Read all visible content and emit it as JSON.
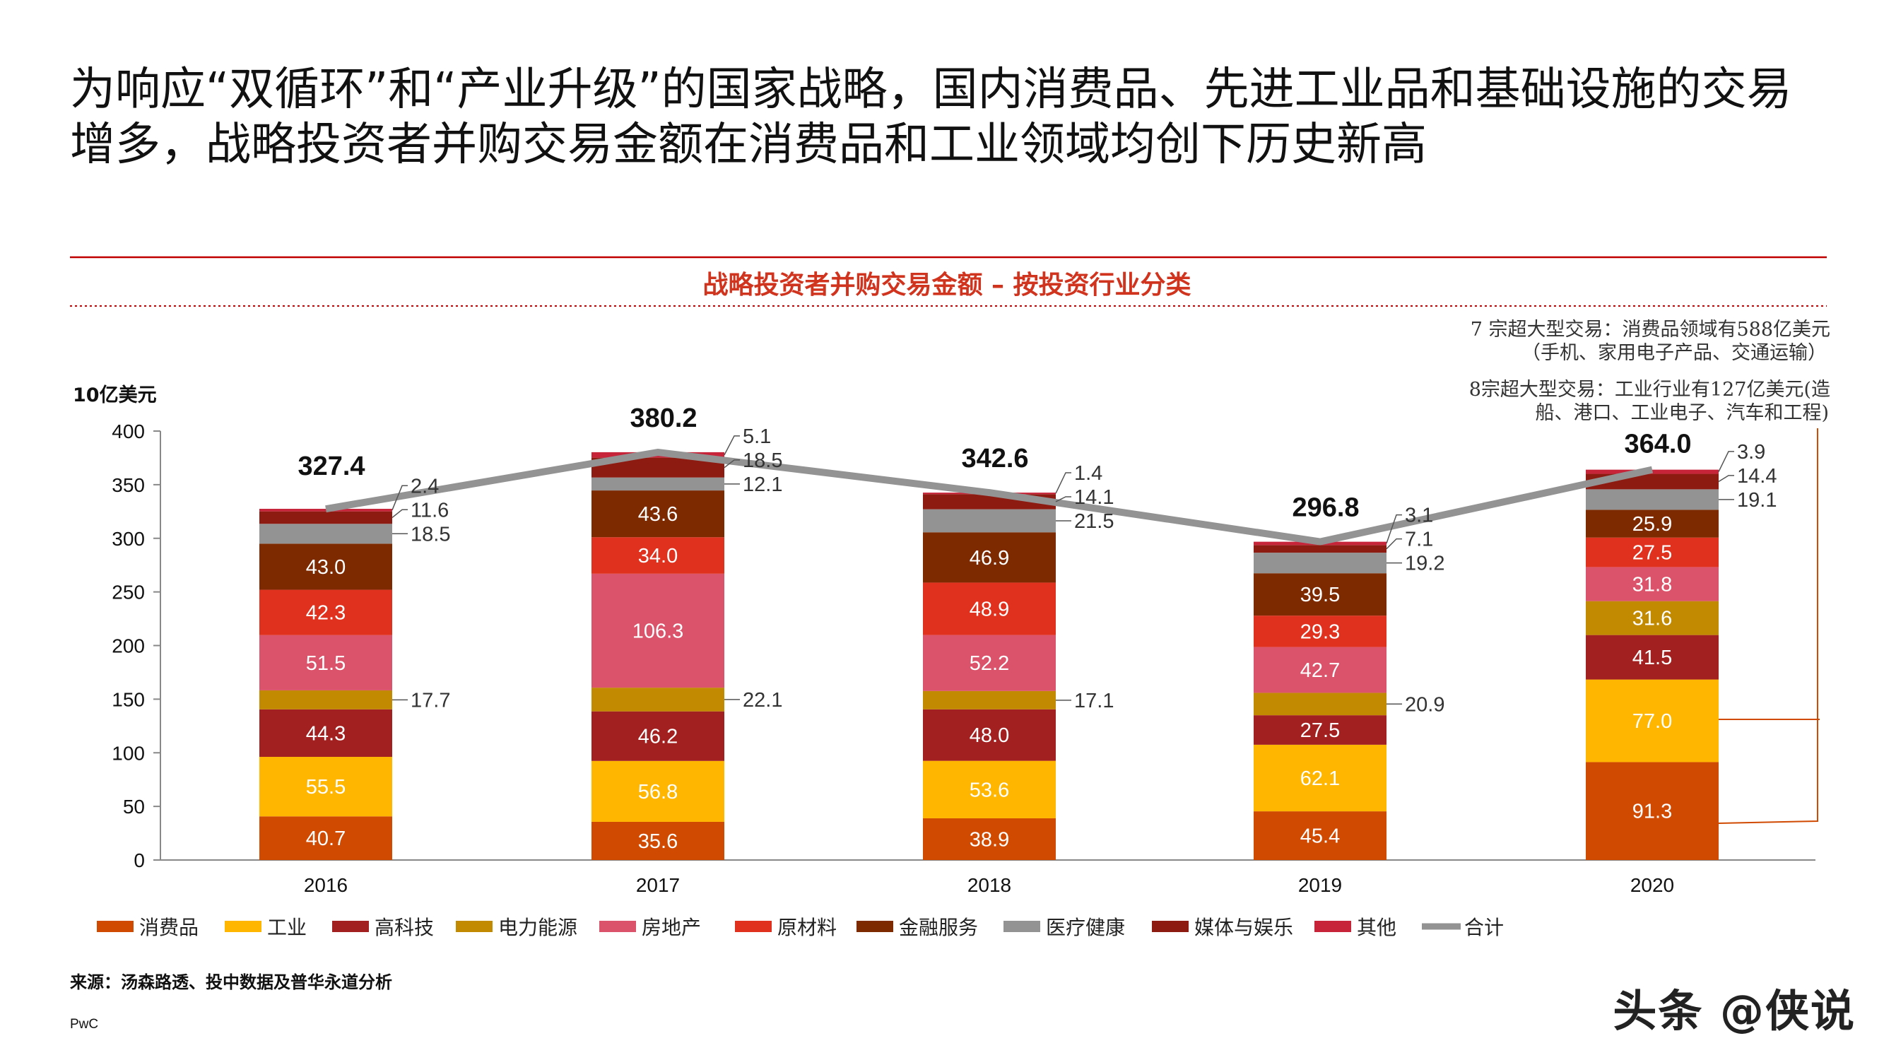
{
  "headline": "为响应“双循环”和“产业升级”的国家战略，国内消费品、先进工业品和基础设施的交易增多，战略投资者并购交易金额在消费品和工业领域均创下历史新高",
  "annotations": {
    "consumer_line1": "7 宗超大型交易：消费品领域有588亿美元",
    "consumer_line2": "（手机、家用电子产品、交通运输）",
    "industrial_line1": "8宗超大型交易：工业行业有127亿美元(造",
    "industrial_line2": "船、港口、工业电子、汽车和工程)"
  },
  "source": "来源：汤森路透、投中数据及普华永道分析",
  "footer": "PwC",
  "watermark": "头条 @侠说",
  "chart_data": {
    "type": "bar",
    "stacked": true,
    "title": "战略投资者并购交易金额 – 按投资行业分类",
    "ylabel": "10亿美元",
    "ylim": [
      0,
      400
    ],
    "yticks": [
      0,
      50,
      100,
      150,
      200,
      250,
      300,
      350,
      400
    ],
    "categories": [
      "2016",
      "2017",
      "2018",
      "2019",
      "2020"
    ],
    "legend_position": "bottom",
    "series": [
      {
        "name": "消费品",
        "color": "#D04A02",
        "values": [
          40.7,
          35.6,
          38.9,
          45.4,
          91.3
        ]
      },
      {
        "name": "工业",
        "color": "#FFB600",
        "values": [
          55.5,
          56.8,
          53.6,
          62.1,
          77.0
        ]
      },
      {
        "name": "高科技",
        "color": "#A32020",
        "values": [
          44.3,
          46.2,
          48.0,
          27.5,
          41.5
        ]
      },
      {
        "name": "电力能源",
        "color": "#C28A00",
        "values": [
          17.7,
          22.1,
          17.1,
          20.9,
          31.6
        ]
      },
      {
        "name": "房地产",
        "color": "#DB536A",
        "values": [
          51.5,
          106.3,
          52.2,
          42.7,
          31.8
        ]
      },
      {
        "name": "原材料",
        "color": "#E0301E",
        "values": [
          42.3,
          34.0,
          48.9,
          29.3,
          27.5
        ]
      },
      {
        "name": "金融服务",
        "color": "#7D2A00",
        "values": [
          43.0,
          43.6,
          46.9,
          39.5,
          25.9
        ]
      },
      {
        "name": "医疗健康",
        "color": "#939393",
        "values": [
          18.5,
          12.1,
          21.5,
          19.2,
          19.1
        ]
      },
      {
        "name": "媒体与娱乐",
        "color": "#8E1B12",
        "values": [
          11.6,
          18.5,
          14.1,
          7.1,
          14.4
        ]
      },
      {
        "name": "其他",
        "color": "#C7243A",
        "values": [
          2.4,
          5.1,
          1.4,
          3.1,
          3.9
        ]
      }
    ],
    "total": {
      "name": "合计",
      "type": "line",
      "color": "#939393",
      "values": [
        327.4,
        380.2,
        342.6,
        296.8,
        364.0
      ]
    }
  }
}
